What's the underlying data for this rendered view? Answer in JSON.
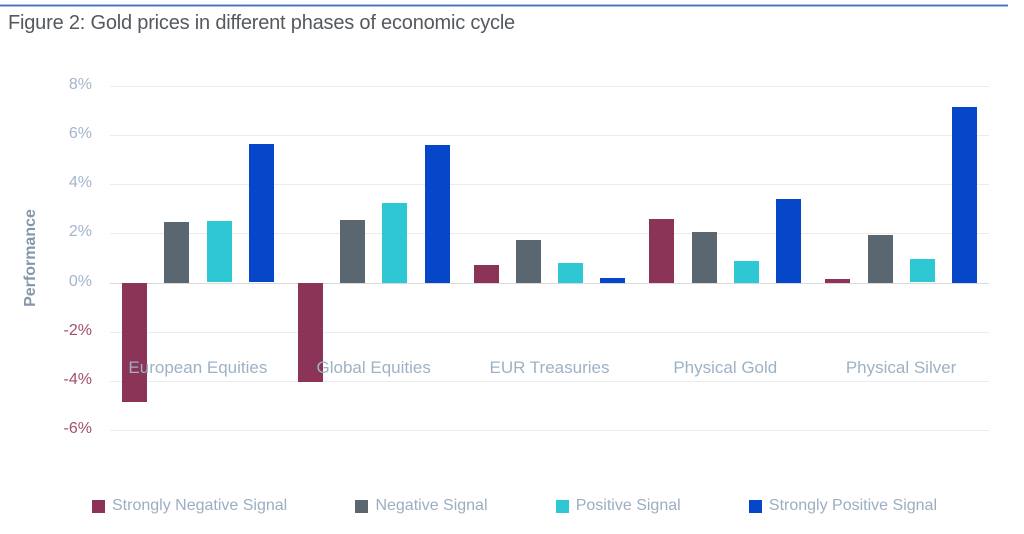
{
  "figure": {
    "title": "Figure 2: Gold prices in different phases of economic cycle"
  },
  "colors": {
    "accent_rule": "#4472C4",
    "title_text": "#55595D",
    "grid_line": "#EBEBED",
    "zero_line": "#D9D9DC",
    "tick_positive": "#A2B5C9",
    "tick_negative": "#A34E70",
    "category_label": "#9DB2C6",
    "legend_label": "#9BAEC2",
    "y_axis_title": "#8496A9"
  },
  "chart_data": {
    "type": "bar",
    "title": "Figure 2: Gold prices in different phases of economic cycle",
    "xlabel": "",
    "ylabel": "Performance",
    "categories": [
      "European Equities",
      "Global Equities",
      "EUR Treasuries",
      "Physical Gold",
      "Physical Silver"
    ],
    "series": [
      {
        "name": "Strongly Negative Signal",
        "color": "#8B3457",
        "values": [
          -4.85,
          -4.05,
          0.7,
          2.6,
          0.15
        ]
      },
      {
        "name": "Negative Signal",
        "color": "#5A6771",
        "values": [
          2.45,
          2.55,
          1.75,
          2.05,
          1.95
        ]
      },
      {
        "name": "Positive Signal",
        "color": "#2EC7D4",
        "values": [
          2.5,
          3.25,
          0.8,
          0.9,
          0.95
        ]
      },
      {
        "name": "Strongly Positive Signal",
        "color": "#0547C8",
        "values": [
          5.65,
          5.6,
          0.2,
          3.4,
          7.15
        ]
      }
    ],
    "ylim": [
      -6,
      8
    ],
    "ytick_step": 2,
    "ytick_suffix": "%",
    "grid": true,
    "legend_position": "bottom"
  }
}
